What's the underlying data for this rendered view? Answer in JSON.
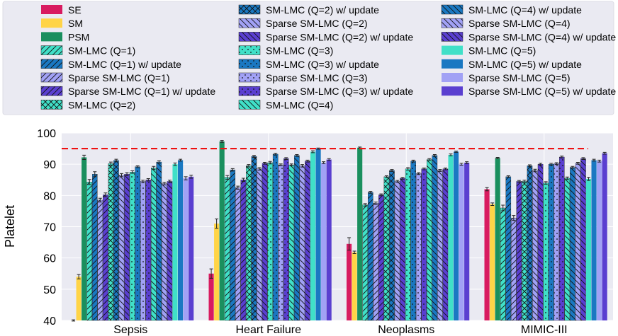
{
  "chart_data": {
    "type": "bar",
    "title": "",
    "xlabel": "",
    "ylabel": "Platelet",
    "ylim": [
      40,
      100
    ],
    "yticks": [
      "40",
      "50",
      "60",
      "70",
      "80",
      "90",
      "100"
    ],
    "categories": [
      "Sepsis",
      "Heart Failure",
      "Neoplasms",
      "MIMIC-III"
    ],
    "reference_line": {
      "value": 95,
      "color": "#ee1111",
      "style": "dashed"
    },
    "grid": true,
    "legend_position": "top",
    "series": [
      {
        "name": "SE",
        "color": "#d81b60",
        "hatch": "none",
        "values": [
          40,
          55,
          64.5,
          82
        ],
        "errors": [
          0.2,
          1.5,
          2,
          0.5
        ]
      },
      {
        "name": "SM",
        "color": "#ffd447",
        "hatch": "none",
        "values": [
          54,
          71,
          61.8,
          77.2
        ],
        "errors": [
          0.7,
          1.5,
          0.4,
          0.4
        ]
      },
      {
        "name": "PSM",
        "color": "#1a8f5e",
        "hatch": "none",
        "values": [
          92.2,
          97.3,
          95.3,
          92
        ],
        "errors": [
          0.7,
          0.3,
          0.2,
          0.2
        ]
      },
      {
        "name": "SM-LMC (Q=1)",
        "color": "#40e0c8",
        "hatch": "slash",
        "values": [
          84.3,
          85.8,
          77,
          76
        ],
        "errors": [
          0.8,
          0.6,
          0.4,
          0.9
        ]
      },
      {
        "name": "SM-LMC (Q=1) w/ update",
        "color": "#1a78c2",
        "hatch": "slash",
        "values": [
          86.8,
          88.2,
          81,
          86
        ],
        "errors": [
          0.8,
          0.4,
          0.3,
          0.3
        ]
      },
      {
        "name": "Sparse SM-LMC (Q=1)",
        "color": "#a1a1f5",
        "hatch": "slash",
        "values": [
          78.5,
          82.5,
          77.5,
          72.8
        ],
        "errors": [
          0.6,
          0.5,
          0.4,
          0.8
        ]
      },
      {
        "name": "Sparse SM-LMC (Q=1) w/ update",
        "color": "#5a3fd0",
        "hatch": "slash",
        "values": [
          80.2,
          85,
          80.2,
          84.5
        ],
        "errors": [
          0.6,
          0.5,
          0.3,
          0.3
        ]
      },
      {
        "name": "SM-LMC (Q=2)",
        "color": "#40e0c8",
        "hatch": "cross",
        "values": [
          90.2,
          89.5,
          86,
          84.5
        ],
        "errors": [
          0.5,
          0.4,
          0.3,
          0.4
        ]
      },
      {
        "name": "SM-LMC (Q=2) w/ update",
        "color": "#1a78c2",
        "hatch": "cross",
        "values": [
          91.2,
          92.5,
          88,
          89.5
        ],
        "errors": [
          0.4,
          0.3,
          0.3,
          0.3
        ]
      },
      {
        "name": "Sparse SM-LMC (Q=2)",
        "color": "#a1a1f5",
        "hatch": "backslash",
        "values": [
          86.5,
          88.5,
          84.5,
          88
        ],
        "errors": [
          0.5,
          0.4,
          0.3,
          0.4
        ]
      },
      {
        "name": "Sparse SM-LMC (Q=2) w/ update",
        "color": "#5a3fd0",
        "hatch": "backslash",
        "values": [
          86.8,
          90.3,
          85.5,
          90
        ],
        "errors": [
          0.5,
          0.3,
          0.3,
          0.3
        ]
      },
      {
        "name": "SM-LMC (Q=3)",
        "color": "#40e0c8",
        "hatch": "dots",
        "values": [
          87.5,
          90.5,
          88.5,
          84
        ],
        "errors": [
          0.4,
          0.4,
          0.4,
          0.4
        ]
      },
      {
        "name": "SM-LMC (Q=3) w/ update",
        "color": "#1a78c2",
        "hatch": "dots",
        "values": [
          89.2,
          93.2,
          91,
          90
        ],
        "errors": [
          0.3,
          0.3,
          0.3,
          0.3
        ]
      },
      {
        "name": "Sparse SM-LMC (Q=3)",
        "color": "#a1a1f5",
        "hatch": "dots",
        "values": [
          84.5,
          89.8,
          87,
          90.2
        ],
        "errors": [
          0.4,
          0.3,
          0.3,
          0.3
        ]
      },
      {
        "name": "Sparse SM-LMC (Q=3) w/ update",
        "color": "#5a3fd0",
        "hatch": "dots",
        "values": [
          85,
          91.8,
          88.5,
          92.3
        ],
        "errors": [
          0.4,
          0.3,
          0.3,
          0.3
        ]
      },
      {
        "name": "SM-LMC (Q=4)",
        "color": "#40e0c8",
        "hatch": "backslash",
        "values": [
          88.8,
          89.8,
          91.5,
          85.5
        ],
        "errors": [
          0.5,
          0.3,
          0.3,
          0.4
        ]
      },
      {
        "name": "SM-LMC (Q=4) w/ update",
        "color": "#1a78c2",
        "hatch": "backslash",
        "values": [
          90.7,
          92.8,
          92.8,
          89
        ],
        "errors": [
          0.4,
          0.3,
          0.3,
          0.3
        ]
      },
      {
        "name": "Sparse SM-LMC (Q=4)",
        "color": "#a1a1f5",
        "hatch": "backslash",
        "values": [
          83.8,
          89.5,
          88,
          90.3
        ],
        "errors": [
          0.4,
          0.4,
          0.3,
          0.3
        ]
      },
      {
        "name": "Sparse SM-LMC (Q=4) w/ update",
        "color": "#5a3fd0",
        "hatch": "backslash",
        "values": [
          84.5,
          91,
          88.5,
          91.8
        ],
        "errors": [
          0.4,
          0.3,
          0.3,
          0.3
        ]
      },
      {
        "name": "SM-LMC (Q=5)",
        "color": "#40e0c8",
        "hatch": "none",
        "values": [
          90,
          94,
          93,
          85.3
        ],
        "errors": [
          0.4,
          0.3,
          0.3,
          0.5
        ]
      },
      {
        "name": "SM-LMC (Q=5) w/ update",
        "color": "#1a78c2",
        "hatch": "none",
        "values": [
          91.3,
          95,
          94,
          91.3
        ],
        "errors": [
          0.3,
          0.2,
          0.2,
          0.3
        ]
      },
      {
        "name": "Sparse SM-LMC (Q=5)",
        "color": "#a1a1f5",
        "hatch": "none",
        "values": [
          85.5,
          90.5,
          90,
          91
        ],
        "errors": [
          0.5,
          0.3,
          0.3,
          0.3
        ]
      },
      {
        "name": "Sparse SM-LMC (Q=5) w/ update",
        "color": "#5a3fd0",
        "hatch": "none",
        "values": [
          86,
          91.5,
          90.5,
          93.5
        ],
        "errors": [
          0.5,
          0.3,
          0.3,
          0.3
        ]
      }
    ]
  }
}
